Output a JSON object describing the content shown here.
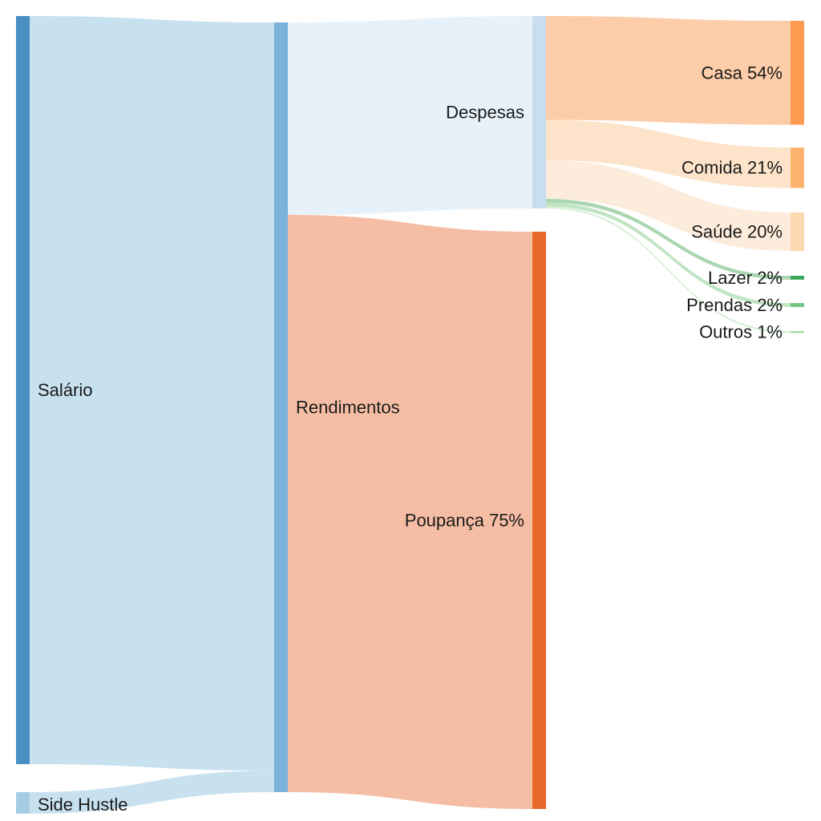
{
  "chart_data": {
    "type": "sankey",
    "nodes": [
      {
        "id": "salario",
        "label": "Salário",
        "color": "#4a8fc4",
        "column": 0
      },
      {
        "id": "side",
        "label": "Side Hustle",
        "color": "#a6cce3",
        "column": 0
      },
      {
        "id": "rendimentos",
        "label": "Rendimentos",
        "color": "#7ab2dc",
        "column": 1
      },
      {
        "id": "despesas",
        "label": "Despesas",
        "color": "#c9ddf0",
        "column": 2
      },
      {
        "id": "poupanca",
        "label": "Poupança 75%",
        "color": "#e8692b",
        "column": 2
      },
      {
        "id": "casa",
        "label": "Casa 54%",
        "color": "#fd9a50",
        "column": 3
      },
      {
        "id": "comida",
        "label": "Comida 21%",
        "color": "#fdb26e",
        "column": 3
      },
      {
        "id": "saude",
        "label": "Saúde 20%",
        "color": "#fdd9b0",
        "column": 3
      },
      {
        "id": "lazer",
        "label": "Lazer 2%",
        "color": "#3aa65a",
        "column": 3
      },
      {
        "id": "prendas",
        "label": "Prendas 2%",
        "color": "#74c383",
        "column": 3
      },
      {
        "id": "outros",
        "label": "Outros 1%",
        "color": "#a8dba4",
        "column": 3
      }
    ],
    "links": [
      {
        "source": "salario",
        "target": "rendimentos",
        "value": 97.2,
        "color": "#c4dfee"
      },
      {
        "source": "side",
        "target": "rendimentos",
        "value": 2.8,
        "color": "#c4dfee"
      },
      {
        "source": "rendimentos",
        "target": "despesas",
        "value": 25,
        "color": "#e6f0f9"
      },
      {
        "source": "rendimentos",
        "target": "poupanca",
        "value": 75,
        "color": "#f4b99e"
      },
      {
        "source": "despesas",
        "target": "casa",
        "value": 13.5,
        "color": "#fdcaa4"
      },
      {
        "source": "despesas",
        "target": "comida",
        "value": 5.25,
        "color": "#fde1c6"
      },
      {
        "source": "despesas",
        "target": "saude",
        "value": 5.0,
        "color": "#fdebd9"
      },
      {
        "source": "despesas",
        "target": "lazer",
        "value": 0.5,
        "color": "#a5d5ad"
      },
      {
        "source": "despesas",
        "target": "prendas",
        "value": 0.5,
        "color": "#bde3c1"
      },
      {
        "source": "despesas",
        "target": "outros",
        "value": 0.25,
        "color": "#d6efd6"
      }
    ]
  }
}
